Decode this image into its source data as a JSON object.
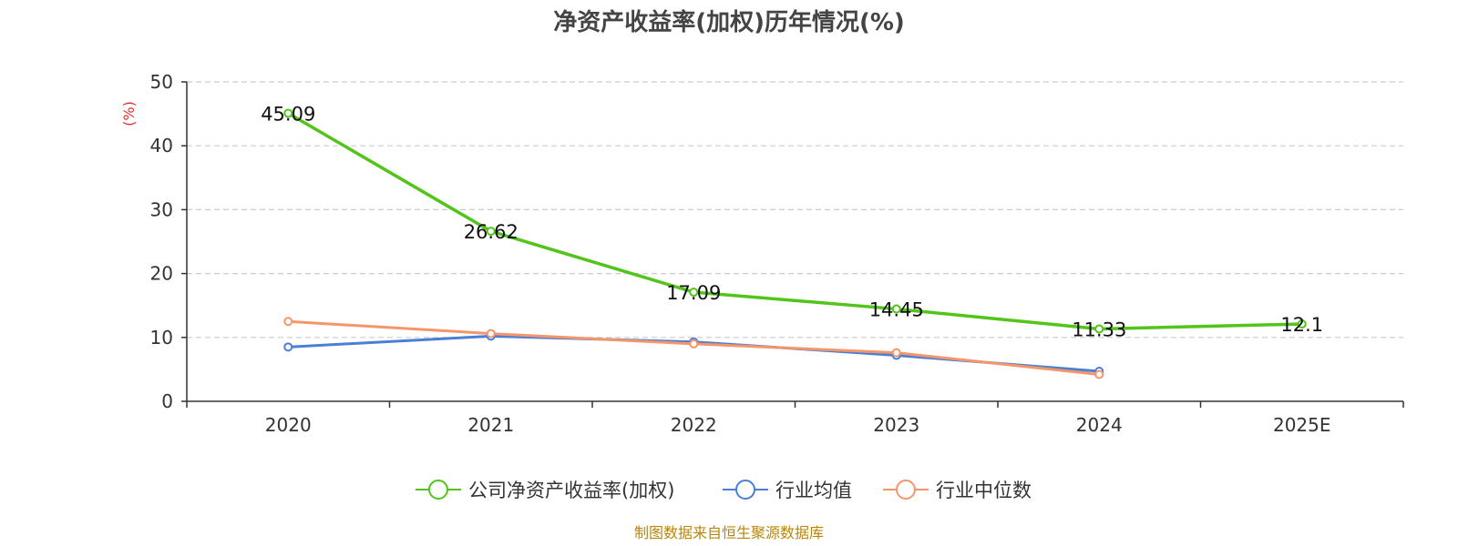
{
  "chart_data": {
    "type": "line",
    "title": "净资产收益率(加权)历年情况(%)",
    "ylabel": "(%)",
    "xlabel": "",
    "categories": [
      "2020",
      "2021",
      "2022",
      "2023",
      "2024",
      "2025E"
    ],
    "ylim": [
      0,
      50
    ],
    "yticks": [
      0,
      10,
      20,
      30,
      40,
      50
    ],
    "grid": true,
    "legend_position": "bottom",
    "series": [
      {
        "name": "公司净资产收益率(加权)",
        "color": "#52c41a",
        "values": [
          45.09,
          26.62,
          17.09,
          14.45,
          11.33,
          12.1
        ],
        "labels": [
          "45.09",
          "26.62",
          "17.09",
          "14.45",
          "11.33",
          "12.1"
        ]
      },
      {
        "name": "行业均值",
        "color": "#4a7fd8",
        "values": [
          8.5,
          10.2,
          9.3,
          7.2,
          4.7,
          null
        ]
      },
      {
        "name": "行业中位数",
        "color": "#f5956a",
        "values": [
          12.5,
          10.6,
          9.0,
          7.6,
          4.2,
          null
        ]
      }
    ]
  },
  "footer": {
    "source": "制图数据来自恒生聚源数据库"
  }
}
